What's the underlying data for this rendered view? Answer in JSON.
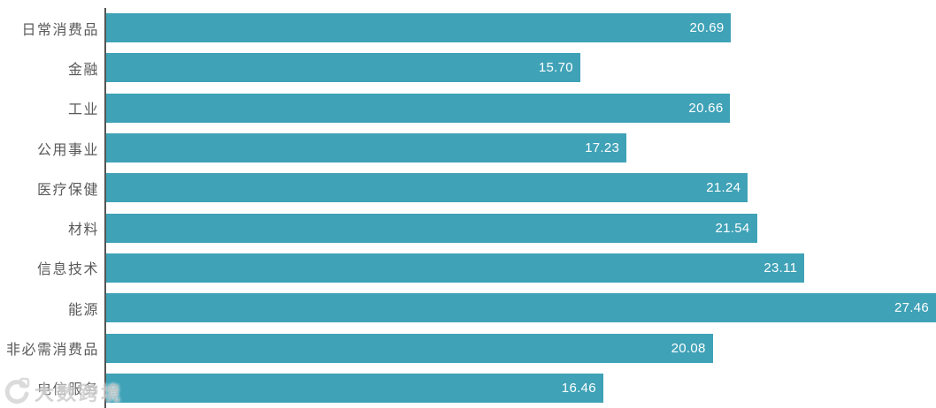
{
  "watermark": {
    "text": "大数跨境"
  },
  "chart_data": {
    "type": "bar",
    "orientation": "horizontal",
    "title": "",
    "xlabel": "",
    "ylabel": "",
    "categories": [
      "日常消费品",
      "金融",
      "工业",
      "公用事业",
      "医疗保健",
      "材料",
      "信息技术",
      "能源",
      "非必需消费品",
      "电信服务"
    ],
    "values": [
      20.69,
      15.7,
      20.66,
      17.23,
      21.24,
      21.54,
      23.11,
      27.46,
      20.08,
      16.46
    ],
    "xlim": [
      0,
      27.46
    ],
    "grid": false,
    "legend": false,
    "value_label_position": "inside-end",
    "value_format": "0.00",
    "bar_color": "#3FA2B7",
    "value_label_color": "#FFFFFF",
    "category_label_color": "#595959",
    "axis_line_color": "#555555"
  }
}
